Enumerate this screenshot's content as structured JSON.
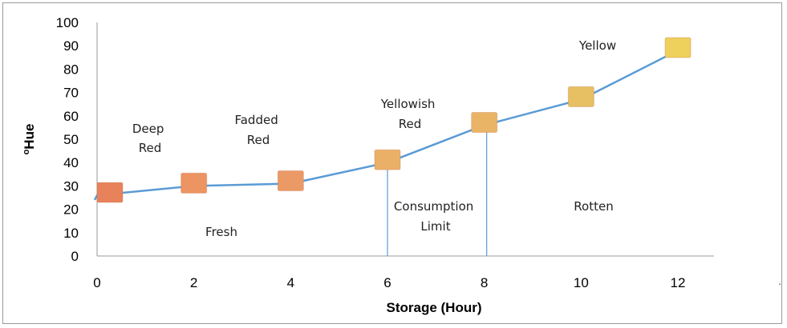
{
  "chart_data": {
    "type": "line",
    "x": [
      0,
      2,
      4,
      6,
      8,
      10,
      12
    ],
    "values": [
      26,
      30,
      31,
      40,
      56,
      67,
      88
    ],
    "xlabel": "Storage (Hour)",
    "ylabel_super": "o",
    "ylabel_main": "Hue",
    "xlim": [
      0,
      12
    ],
    "ylim": [
      0,
      100
    ],
    "xticks": [
      "0",
      "2",
      "4",
      "6",
      "8",
      "10",
      "12"
    ],
    "yticks": [
      "0",
      "10",
      "20",
      "30",
      "40",
      "50",
      "60",
      "70",
      "80",
      "90",
      "100"
    ],
    "grid": false,
    "legend": "none",
    "line_color": "#5b9bd5",
    "marker_colors": [
      "#e8825a",
      "#ec9462",
      "#eb9a66",
      "#ebb068",
      "#eab467",
      "#e6c062",
      "#eed05c"
    ],
    "annotations": {
      "deep_red": [
        "Deep",
        "Red"
      ],
      "fadded_red": [
        "Fadded",
        "Red"
      ],
      "yellowish_red": [
        "Yellowish",
        "Red"
      ],
      "yellow": "Yellow",
      "fresh": "Fresh",
      "consumption_limit": [
        "Consumption",
        "Limit"
      ],
      "rotten": "Rotten"
    },
    "stray_mark": "."
  }
}
